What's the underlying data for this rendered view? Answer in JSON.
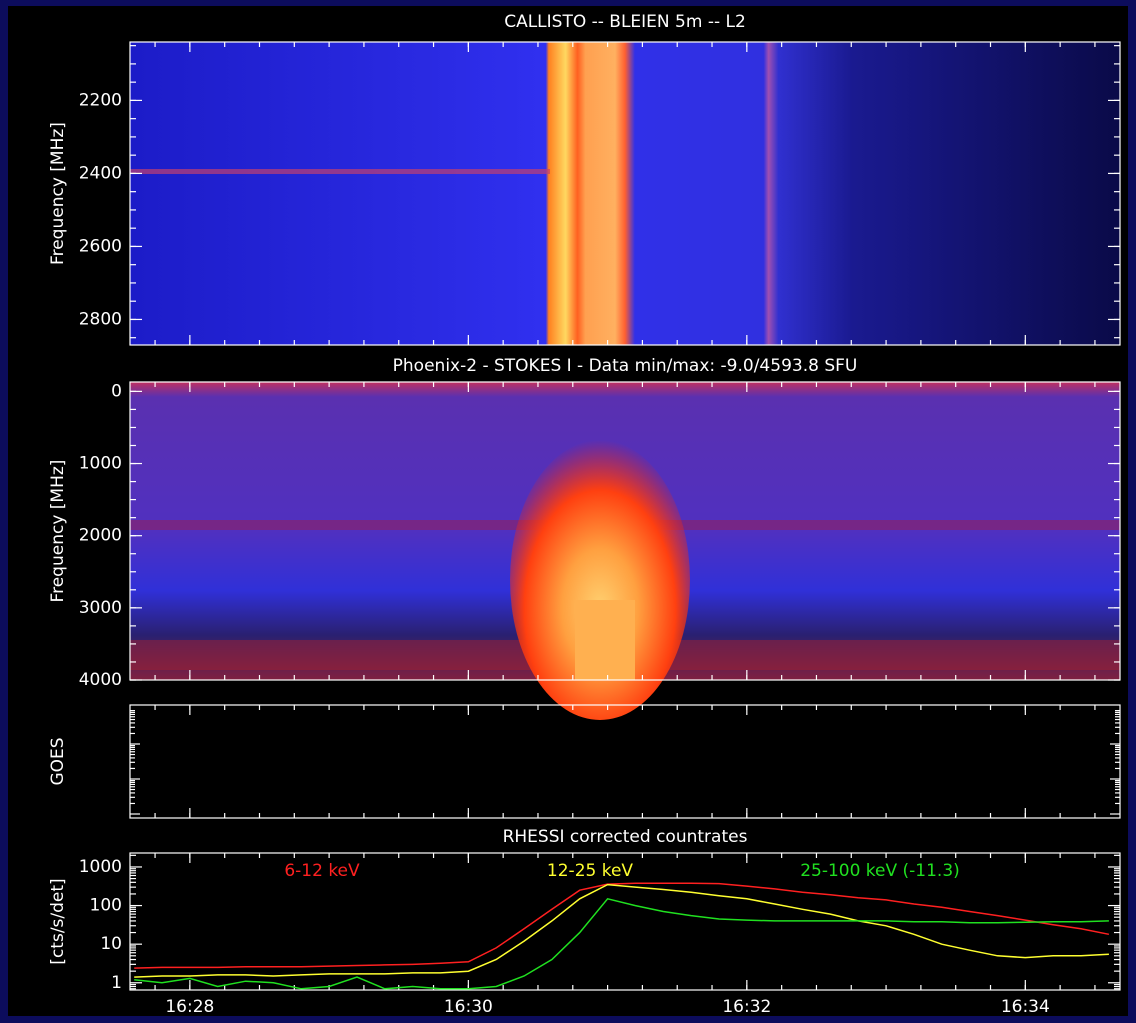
{
  "chart_data": [
    {
      "type": "heatmap",
      "title": "CALLISTO -- BLEIEN 5m -- L2",
      "y_label": "Frequency [MHz]",
      "ylim": [
        2870,
        2040
      ],
      "yticks": [
        2200,
        2400,
        2600,
        2800
      ]
    },
    {
      "type": "heatmap",
      "title": "Phoenix-2 - STOKES I - Data min/max: -9.0/4593.8 SFU",
      "y_label": "Frequency [MHz]",
      "ylim": [
        4000,
        -130
      ],
      "yticks": [
        0,
        1000,
        2000,
        3000,
        4000
      ]
    },
    {
      "type": "line",
      "y_label": "GOES"
    },
    {
      "type": "line",
      "title": "RHESSI corrected countrates",
      "y_label": "[cts/s/det]",
      "log_scale": true,
      "ylim": [
        0.65,
        2300
      ],
      "yticks": [
        1,
        10,
        100,
        1000
      ],
      "xlim": [
        27.57,
        34.68
      ],
      "xticks": [
        {
          "value": 28,
          "label": "16:28"
        },
        {
          "value": 30,
          "label": "16:30"
        },
        {
          "value": 32,
          "label": "16:32"
        },
        {
          "value": 34,
          "label": "16:34"
        }
      ],
      "x": [
        27.6,
        27.8,
        28.0,
        28.2,
        28.4,
        28.6,
        28.8,
        29.0,
        29.2,
        29.4,
        29.6,
        29.8,
        30.0,
        30.2,
        30.4,
        30.6,
        30.8,
        31.0,
        31.2,
        31.4,
        31.6,
        31.8,
        32.0,
        32.2,
        32.4,
        32.6,
        32.8,
        33.0,
        33.2,
        33.4,
        33.6,
        33.8,
        34.0,
        34.2,
        34.4,
        34.6
      ],
      "series": [
        {
          "name": "6-12 keV",
          "color": "#ff2020",
          "values": [
            2.4,
            2.5,
            2.5,
            2.5,
            2.6,
            2.6,
            2.6,
            2.7,
            2.8,
            2.9,
            3.0,
            3.2,
            3.5,
            8,
            25,
            80,
            250,
            360,
            380,
            380,
            380,
            370,
            320,
            270,
            220,
            190,
            160,
            140,
            110,
            90,
            70,
            55,
            42,
            32,
            25,
            18
          ]
        },
        {
          "name": "12-25 keV",
          "color": "#ffff30",
          "values": [
            1.4,
            1.5,
            1.5,
            1.6,
            1.6,
            1.5,
            1.6,
            1.7,
            1.7,
            1.7,
            1.8,
            1.8,
            2.0,
            4,
            12,
            40,
            150,
            350,
            300,
            260,
            220,
            180,
            150,
            110,
            80,
            60,
            40,
            30,
            18,
            10,
            7,
            5,
            4.5,
            5,
            5,
            5.5
          ]
        },
        {
          "name": "25-100 keV (-11.3)",
          "color": "#20e020",
          "values": [
            1.2,
            1,
            1.3,
            0.8,
            1.1,
            1,
            0.7,
            0.8,
            1.4,
            0.7,
            0.8,
            0.7,
            0.7,
            0.8,
            1.5,
            4,
            20,
            150,
            100,
            70,
            55,
            45,
            42,
            40,
            40,
            40,
            40,
            40,
            38,
            38,
            36,
            36,
            37,
            38,
            38,
            40
          ]
        }
      ]
    }
  ]
}
